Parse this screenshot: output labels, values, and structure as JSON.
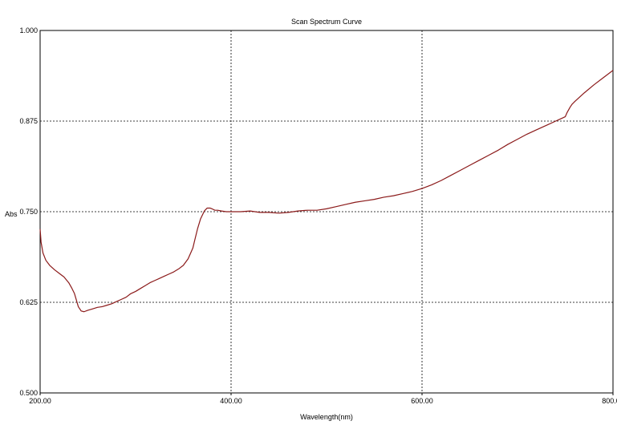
{
  "chart_data": {
    "type": "line",
    "title": "Scan Spectrum Curve",
    "xlabel": "Wavelength(nm)",
    "ylabel": "Abs",
    "xlim": [
      200,
      800
    ],
    "ylim": [
      0.5,
      1.0
    ],
    "xticks": [
      "200.00",
      "400.00",
      "600.00",
      "800.00"
    ],
    "xtick_values": [
      200,
      400,
      600,
      800
    ],
    "yticks": [
      "1.000",
      "0.875",
      "0.750",
      "0.625",
      "0.500"
    ],
    "ytick_values": [
      1.0,
      0.875,
      0.75,
      0.625,
      0.5
    ],
    "grid": true,
    "line_color": "#8b1a1a",
    "series": [
      {
        "x": [
          200,
          201,
          203,
          206,
          210,
          215,
          220,
          225,
          230,
          233,
          236,
          238,
          240,
          243,
          246,
          250,
          255,
          260,
          265,
          270,
          275,
          280,
          285,
          290,
          295,
          300,
          305,
          310,
          315,
          320,
          325,
          330,
          335,
          340,
          345,
          350,
          355,
          360,
          362,
          365,
          368,
          372,
          375,
          378,
          380,
          383,
          386,
          390,
          395,
          400,
          405,
          410,
          420,
          430,
          440,
          450,
          460,
          470,
          480,
          490,
          500,
          510,
          520,
          530,
          540,
          550,
          560,
          570,
          580,
          590,
          600,
          610,
          620,
          630,
          640,
          650,
          660,
          670,
          680,
          690,
          700,
          710,
          720,
          730,
          740,
          745,
          750,
          752,
          755,
          757,
          760,
          770,
          780,
          790,
          800
        ],
        "y": [
          0.726,
          0.708,
          0.693,
          0.683,
          0.676,
          0.67,
          0.665,
          0.66,
          0.652,
          0.645,
          0.637,
          0.628,
          0.619,
          0.613,
          0.612,
          0.614,
          0.616,
          0.618,
          0.619,
          0.621,
          0.623,
          0.626,
          0.629,
          0.632,
          0.637,
          0.64,
          0.644,
          0.648,
          0.652,
          0.655,
          0.658,
          0.661,
          0.664,
          0.667,
          0.671,
          0.676,
          0.685,
          0.7,
          0.711,
          0.727,
          0.74,
          0.751,
          0.755,
          0.755,
          0.754,
          0.752,
          0.752,
          0.751,
          0.75,
          0.75,
          0.75,
          0.75,
          0.751,
          0.749,
          0.749,
          0.748,
          0.749,
          0.751,
          0.752,
          0.752,
          0.754,
          0.757,
          0.76,
          0.763,
          0.765,
          0.767,
          0.77,
          0.772,
          0.775,
          0.778,
          0.782,
          0.787,
          0.793,
          0.8,
          0.807,
          0.814,
          0.821,
          0.828,
          0.835,
          0.843,
          0.85,
          0.857,
          0.863,
          0.869,
          0.875,
          0.878,
          0.881,
          0.887,
          0.894,
          0.898,
          0.902,
          0.914,
          0.925,
          0.935,
          0.945
        ]
      }
    ]
  }
}
